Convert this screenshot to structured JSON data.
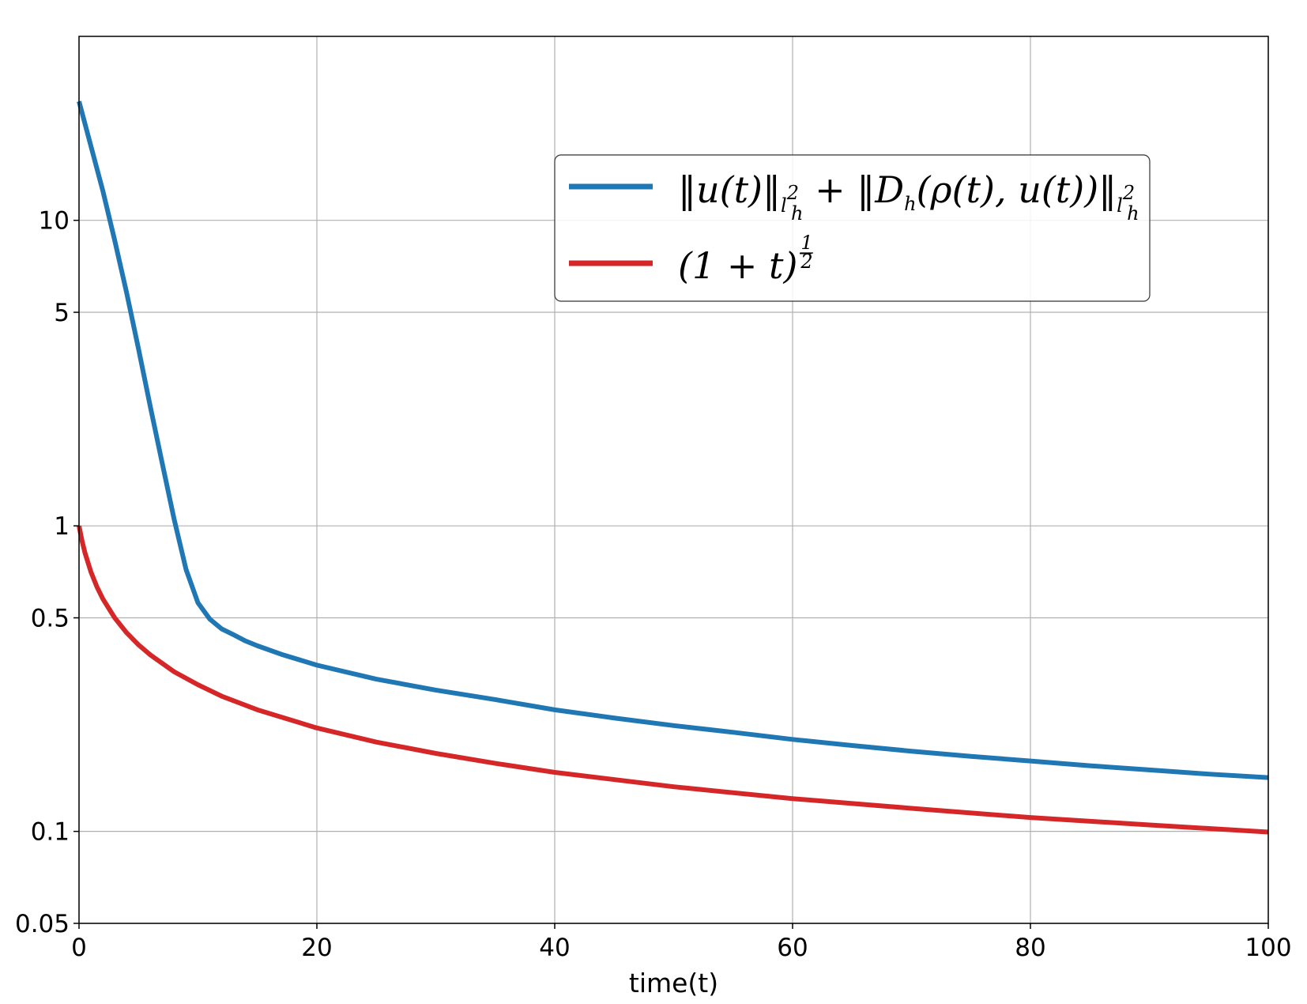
{
  "chart_data": {
    "type": "line",
    "title": "",
    "xlabel": "time(t)",
    "ylabel": "",
    "xlim": [
      0,
      100
    ],
    "ylim": [
      0.05,
      40
    ],
    "yscale": "log",
    "grid": true,
    "legend_position": "upper-right",
    "x_ticks": [
      "0",
      "20",
      "40",
      "60",
      "80",
      "100"
    ],
    "y_ticks": [
      "0.05",
      "0.1",
      "0.5",
      "1",
      "5",
      "10"
    ],
    "series": [
      {
        "name": "‖u(t)‖_{l²_h} + ‖D_h(ρ(t), u(t))‖_{l²_h}",
        "color": "#1f77b4",
        "x": [
          0,
          1,
          2,
          3,
          4,
          5,
          6,
          7,
          8,
          9,
          10,
          11,
          12,
          13,
          14,
          15,
          17,
          20,
          25,
          30,
          35,
          40,
          45,
          50,
          55,
          60,
          65,
          70,
          75,
          80,
          85,
          90,
          95,
          100
        ],
        "y": [
          24.5,
          17.5,
          12.5,
          8.6,
          5.8,
          3.8,
          2.45,
          1.6,
          1.05,
          0.72,
          0.56,
          0.495,
          0.46,
          0.44,
          0.42,
          0.405,
          0.38,
          0.35,
          0.315,
          0.29,
          0.27,
          0.25,
          0.235,
          0.222,
          0.211,
          0.2,
          0.191,
          0.183,
          0.176,
          0.17,
          0.164,
          0.159,
          0.154,
          0.15
        ]
      },
      {
        "name": "(1 + t)^{-1/2}",
        "color": "#d62728",
        "x": [
          0,
          0.25,
          0.5,
          1,
          1.5,
          2,
          3,
          4,
          5,
          6,
          8,
          10,
          12,
          15,
          20,
          25,
          30,
          35,
          40,
          50,
          60,
          70,
          80,
          90,
          100
        ],
        "y": [
          1.0,
          0.894,
          0.816,
          0.707,
          0.632,
          0.577,
          0.5,
          0.447,
          0.408,
          0.378,
          0.333,
          0.302,
          0.277,
          0.25,
          0.218,
          0.196,
          0.18,
          0.167,
          0.156,
          0.14,
          0.128,
          0.119,
          0.111,
          0.105,
          0.0995
        ]
      }
    ]
  },
  "legend": {
    "entry1": {
      "norm1": "‖u(t)‖",
      "sub1": "l",
      "sup1": "2",
      "sub1b": "h",
      "plus": " + ‖D",
      "dsub": "h",
      "arg": "(ρ(t), u(t))‖",
      "sub2": "l",
      "sup2": "2",
      "sub2b": "h"
    },
    "entry2": {
      "base": "(1 + t)",
      "exp_sign": "−",
      "exp_num": "1",
      "exp_den": "2"
    }
  }
}
